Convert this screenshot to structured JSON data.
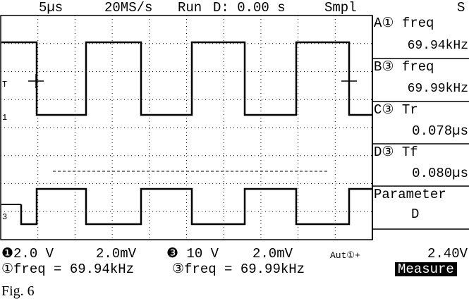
{
  "top_bar": [
    "5µs",
    "20MS/s",
    "Run",
    "D: 0.00 s",
    "Smpl",
    "S"
  ],
  "channel_markers": [
    "T",
    "1",
    "3"
  ],
  "measurements": [
    {
      "label": "A① freq",
      "value": "69.94kHz"
    },
    {
      "label": "B③ freq",
      "value": "69.99kHz"
    },
    {
      "label": "C③ Tr",
      "value": "0.078µs"
    },
    {
      "label": "D③ Tf",
      "value": "0.080µs"
    }
  ],
  "parameter": {
    "label": "Parameter",
    "value": "D"
  },
  "status_row": [
    "❶2.0 V",
    "2.0mV",
    "❸ 10 V",
    "2.0mV",
    "Aut①+",
    "2.40V"
  ],
  "readout_row": [
    "①freq = 69.94kHz",
    "③freq = 69.99kHz"
  ],
  "menu": "Measure",
  "caption": "Fig. 6"
}
